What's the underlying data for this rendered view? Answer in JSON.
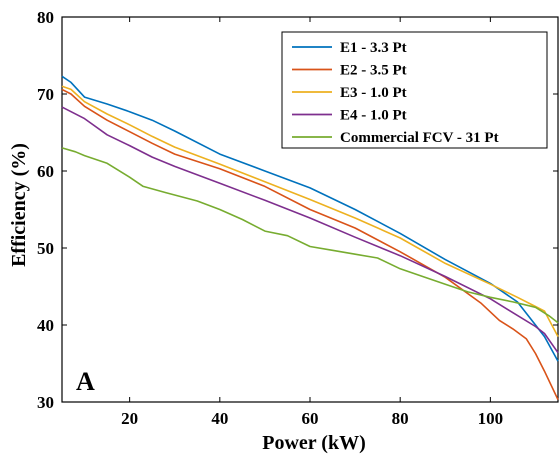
{
  "chart_data": {
    "type": "line",
    "title": "",
    "xlabel": "Power (kW)",
    "ylabel": "Efficiency (%)",
    "panel_label": "A",
    "xlim": [
      5,
      115
    ],
    "ylim": [
      30,
      80
    ],
    "xticks": [
      20,
      40,
      60,
      80,
      100
    ],
    "yticks": [
      30,
      40,
      50,
      60,
      70,
      80
    ],
    "grid": false,
    "legend_position": "top-right",
    "series": [
      {
        "name": "E1 - 3.3 Pt",
        "color": "#0072BD",
        "x": [
          5,
          7,
          10,
          15,
          20,
          25,
          30,
          40,
          50,
          60,
          70,
          80,
          90,
          100,
          106,
          110,
          112,
          115
        ],
        "y": [
          72.3,
          71.5,
          69.6,
          68.7,
          67.7,
          66.6,
          65.2,
          62.2,
          60.0,
          57.8,
          55.0,
          51.9,
          48.5,
          45.4,
          43.0,
          40.0,
          38.5,
          35.3
        ]
      },
      {
        "name": "E2 - 3.5 Pt",
        "color": "#D95319",
        "x": [
          5,
          7,
          10,
          15,
          20,
          25,
          30,
          40,
          50,
          60,
          70,
          80,
          90,
          98,
          102,
          105,
          108,
          110,
          112,
          115
        ],
        "y": [
          70.6,
          70.0,
          68.4,
          66.6,
          65.1,
          63.6,
          62.2,
          60.3,
          58.0,
          55.0,
          52.6,
          49.5,
          46.2,
          42.8,
          40.6,
          39.5,
          38.2,
          36.3,
          34.0,
          30.3
        ]
      },
      {
        "name": "E3 - 1.0 Pt",
        "color": "#EDB120",
        "x": [
          5,
          7,
          10,
          15,
          20,
          25,
          30,
          40,
          50,
          60,
          70,
          80,
          90,
          100,
          106,
          110,
          112,
          115
        ],
        "y": [
          71.0,
          70.6,
          69.0,
          67.4,
          66.0,
          64.5,
          63.1,
          60.9,
          58.6,
          56.3,
          53.9,
          51.3,
          48.0,
          45.3,
          43.6,
          42.4,
          41.8,
          38.5
        ]
      },
      {
        "name": "E4 - 1.0 Pt",
        "color": "#7E2F8E",
        "x": [
          5,
          10,
          15,
          20,
          25,
          30,
          40,
          50,
          60,
          70,
          80,
          90,
          100,
          105,
          110,
          112,
          115
        ],
        "y": [
          68.3,
          66.8,
          64.7,
          63.3,
          61.8,
          60.6,
          58.4,
          56.2,
          53.9,
          51.4,
          49.0,
          46.3,
          43.4,
          41.6,
          39.8,
          38.9,
          36.4
        ]
      },
      {
        "name": "Commercial FCV - 31 Pt",
        "color": "#77AC30",
        "x": [
          5,
          8,
          10,
          15,
          20,
          23,
          28,
          35,
          40,
          45,
          50,
          55,
          60,
          65,
          70,
          75,
          80,
          85,
          90,
          95,
          100,
          105,
          110,
          113,
          115
        ],
        "y": [
          63.0,
          62.5,
          62.0,
          61.0,
          59.2,
          58.0,
          57.2,
          56.1,
          55.0,
          53.7,
          52.2,
          51.6,
          50.2,
          49.7,
          49.2,
          48.7,
          47.3,
          46.3,
          45.3,
          44.3,
          43.6,
          43.0,
          42.3,
          41.2,
          40.3
        ]
      }
    ]
  }
}
